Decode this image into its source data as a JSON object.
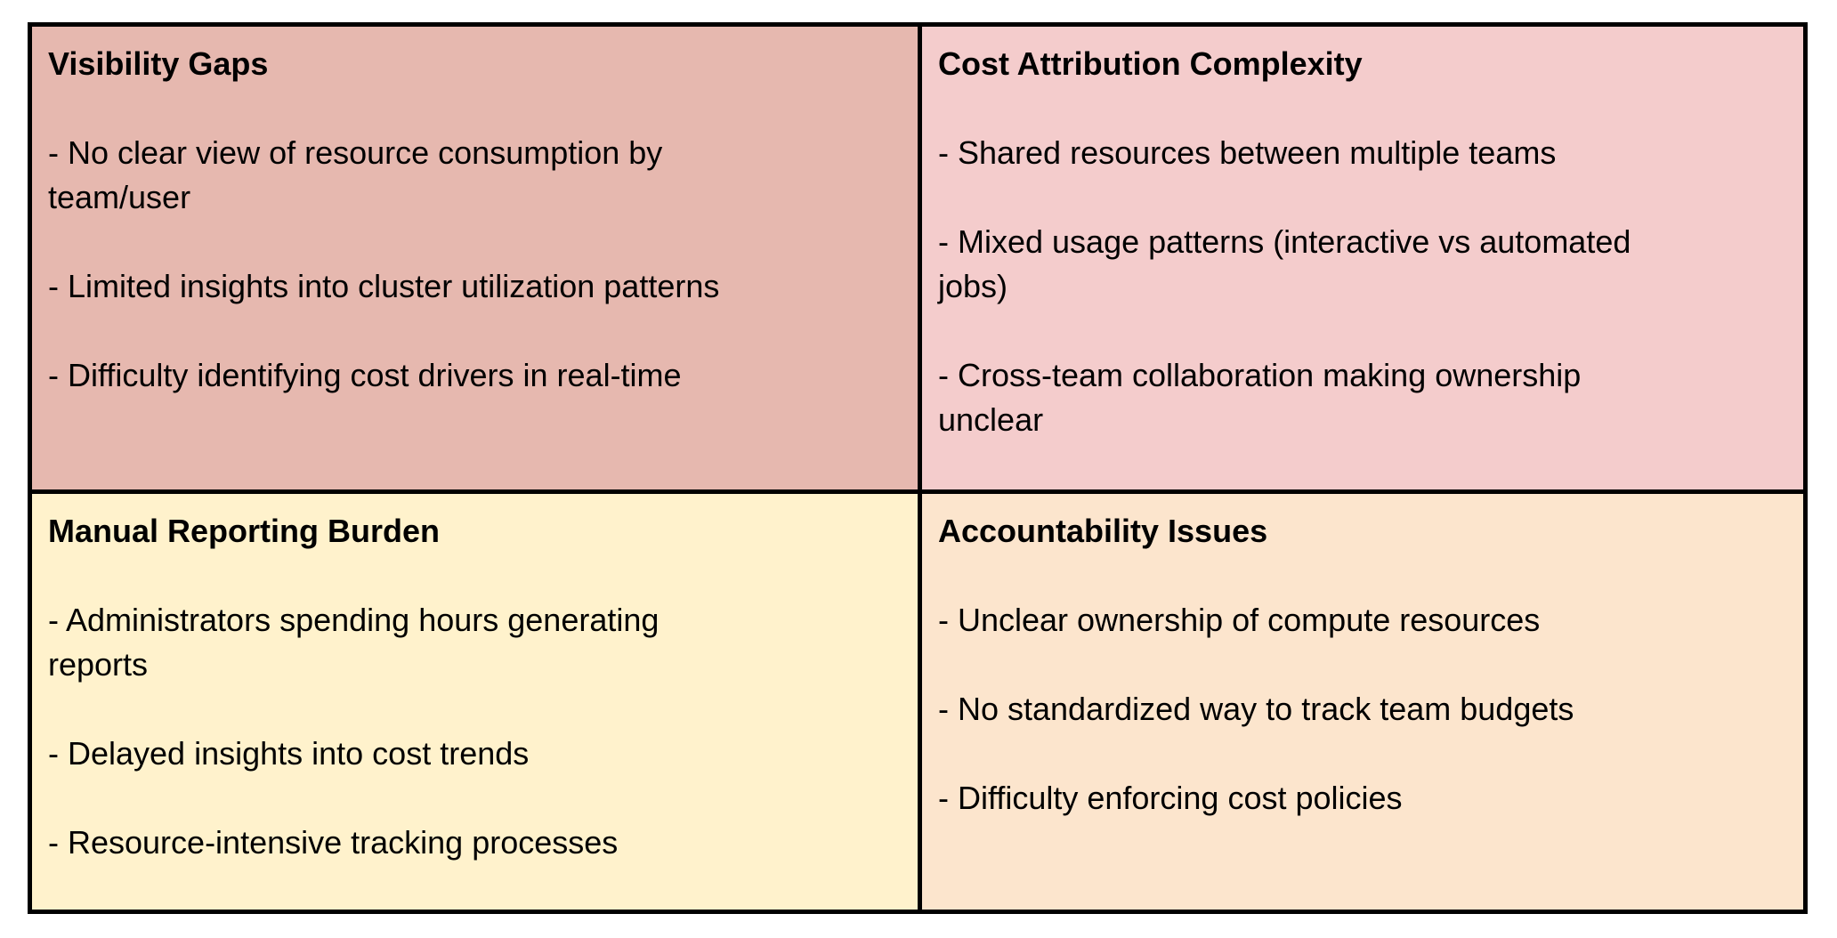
{
  "colors": {
    "page_background": "#ffffff",
    "border": "#000000",
    "text": "#000000",
    "quadrant_tl_bg": "#e6b8af",
    "quadrant_tr_bg": "#f4cccc",
    "quadrant_bl_bg": "#fff2cc",
    "quadrant_br_bg": "#fce5cd"
  },
  "quadrants": {
    "visibility_gaps": {
      "title": "Visibility Gaps",
      "items": [
        "- No clear view of resource consumption by\nteam/user",
        "- Limited insights into cluster utilization patterns",
        "- Difficulty identifying cost drivers in real-time"
      ]
    },
    "cost_attribution_complexity": {
      "title": "Cost Attribution Complexity",
      "items": [
        "- Shared resources between multiple teams",
        "- Mixed usage patterns (interactive vs automated\njobs)",
        "- Cross-team collaboration making ownership\nunclear"
      ]
    },
    "manual_reporting_burden": {
      "title": "Manual Reporting Burden",
      "items": [
        "- Administrators spending hours generating\nreports",
        "- Delayed insights into cost trends",
        "- Resource-intensive tracking processes"
      ]
    },
    "accountability_issues": {
      "title": "Accountability Issues",
      "items": [
        "- Unclear ownership of compute resources",
        "- No standardized way to track team budgets",
        "- Difficulty enforcing cost policies"
      ]
    }
  }
}
